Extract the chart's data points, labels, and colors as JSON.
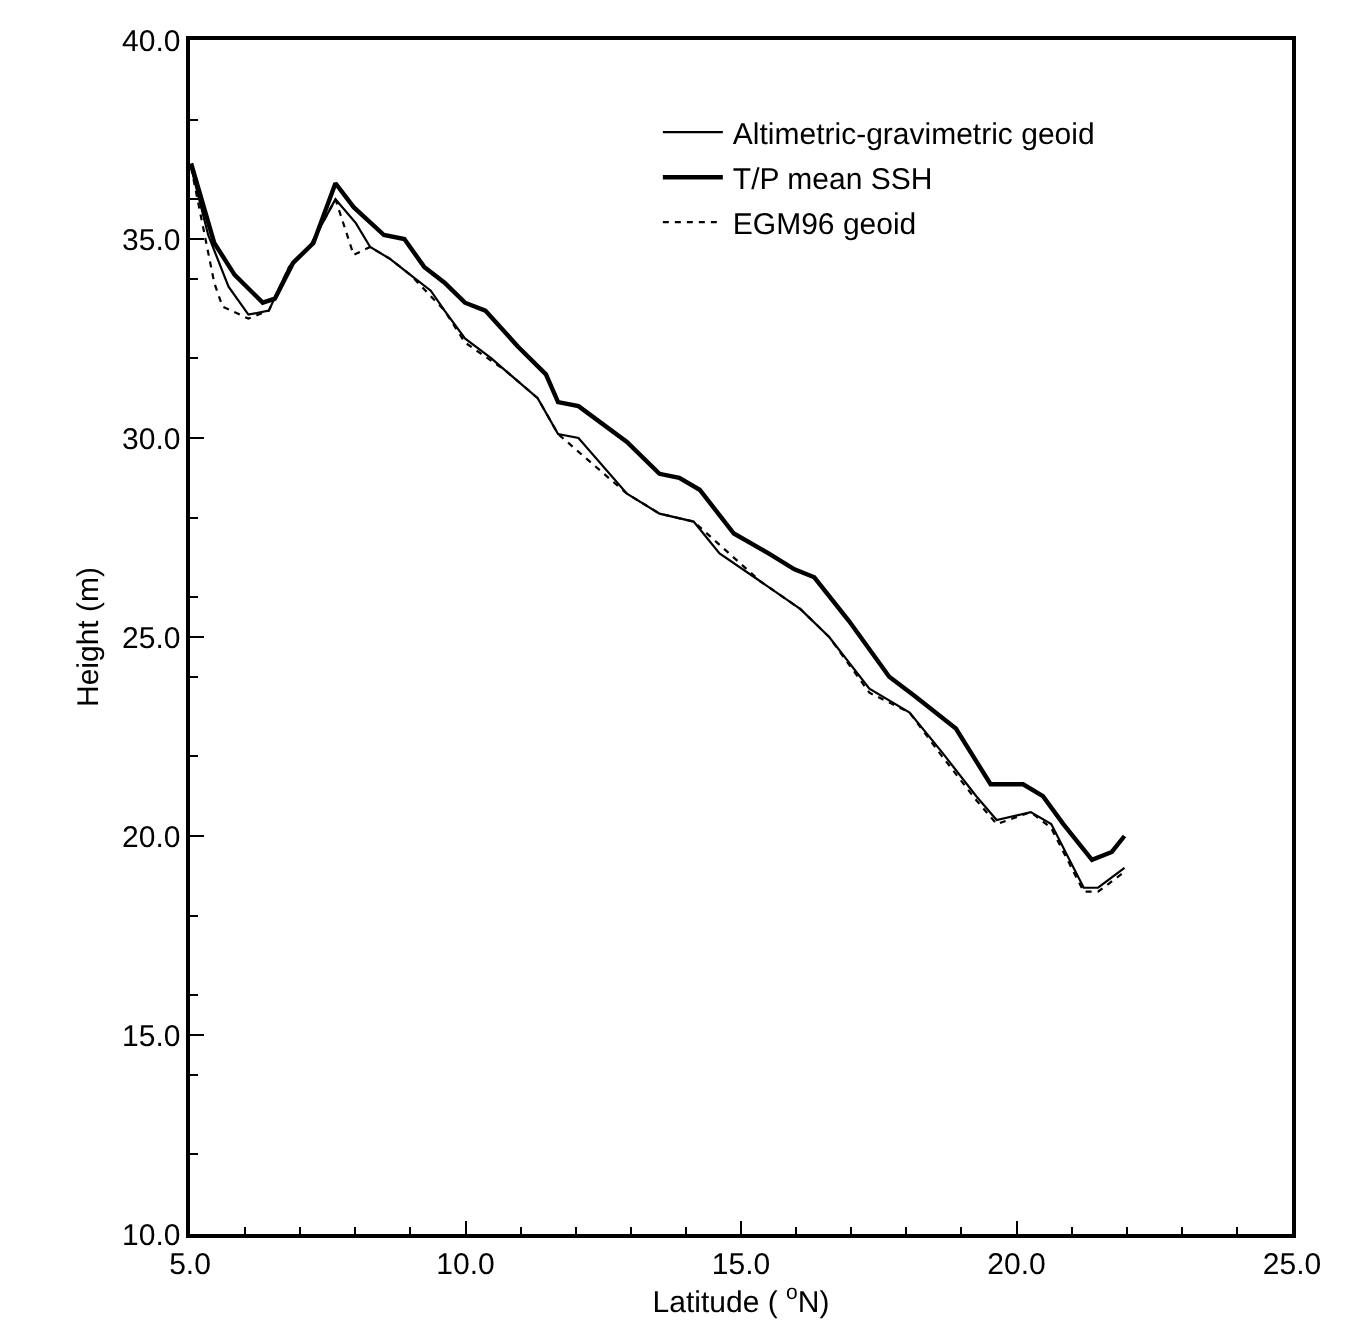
{
  "chart_data": {
    "type": "line",
    "xlabel": "Latitude ( $^{o}$N)",
    "ylabel": "Height (m)",
    "xlim": [
      5,
      25
    ],
    "xticks": [
      {
        "value": 5,
        "label": "5.0"
      },
      {
        "value": 10,
        "label": "10.0"
      },
      {
        "value": 15,
        "label": "15.0"
      },
      {
        "value": 20,
        "label": "20.0"
      },
      {
        "value": 25,
        "label": "25.0"
      }
    ],
    "ylim": [
      10,
      40
    ],
    "yticks": [
      {
        "value": 10,
        "label": "10.0"
      },
      {
        "value": 15,
        "label": "15.0"
      },
      {
        "value": 20,
        "label": "20.0"
      },
      {
        "value": 25,
        "label": "25.0"
      },
      {
        "value": 30,
        "label": "30.0"
      },
      {
        "value": 35,
        "label": "35.0"
      },
      {
        "value": 40,
        "label": "40.0"
      }
    ],
    "legend": "top right",
    "marker": "none",
    "series": [
      {
        "name": "Altimetric-gravimetric geoid",
        "color": "#000000",
        "line_style": "solid",
        "x": [
          5.02,
          5.33,
          5.7,
          6.06,
          6.43,
          6.8,
          7.17,
          7.64,
          8.01,
          8.27,
          8.63,
          9.0,
          9.37,
          9.62,
          9.99,
          10.47,
          10.72,
          11.31,
          11.68,
          12.05,
          12.93,
          13.52,
          14.14,
          14.61,
          15.35,
          16.08,
          16.6,
          17.33,
          18.06,
          18.65,
          19.27,
          19.64,
          20.26,
          20.63,
          21.22,
          21.48,
          21.96
        ],
        "values": [
          36.8,
          35.1,
          33.8,
          33.1,
          33.2,
          34.3,
          34.8,
          36.0,
          35.4,
          34.8,
          34.5,
          34.1,
          33.7,
          33.2,
          32.5,
          32.0,
          31.7,
          31.0,
          30.1,
          30.0,
          28.6,
          28.1,
          27.9,
          27.1,
          26.4,
          25.7,
          25.0,
          23.7,
          23.1,
          22.1,
          21.0,
          20.4,
          20.6,
          20.3,
          18.7,
          18.7,
          19.2
        ]
      },
      {
        "name": "T/P mean SSH",
        "color": "#000000",
        "line_style": "solid",
        "x": [
          5.02,
          5.44,
          5.81,
          6.32,
          6.54,
          6.87,
          7.24,
          7.64,
          7.97,
          8.52,
          8.89,
          9.25,
          9.62,
          9.99,
          10.36,
          10.95,
          11.46,
          11.68,
          12.05,
          12.93,
          13.52,
          13.88,
          14.25,
          14.87,
          15.5,
          15.97,
          16.33,
          16.96,
          17.69,
          18.17,
          18.9,
          19.53,
          20.12,
          20.48,
          20.85,
          21.37,
          21.73,
          21.96
        ],
        "values": [
          36.9,
          34.9,
          34.1,
          33.4,
          33.5,
          34.4,
          34.9,
          36.4,
          35.8,
          35.1,
          35.0,
          34.3,
          33.9,
          33.4,
          33.2,
          32.3,
          31.6,
          30.9,
          30.8,
          29.9,
          29.1,
          29.0,
          28.7,
          27.6,
          27.1,
          26.7,
          26.5,
          25.4,
          24.0,
          23.5,
          22.7,
          21.3,
          21.3,
          21.0,
          20.3,
          19.4,
          19.6,
          20.0
        ]
      },
      {
        "name": "EGM96 geoid",
        "color": "#000000",
        "line_style": "dotted",
        "x": [
          5.02,
          5.44,
          5.59,
          6.06,
          6.43,
          6.8,
          7.17,
          7.64,
          7.97,
          8.27,
          8.63,
          9.0,
          9.62,
          9.99,
          10.72,
          11.31,
          11.68,
          12.93,
          13.52,
          14.14,
          15.35,
          16.08,
          16.6,
          17.33,
          18.06,
          18.65,
          19.27,
          19.64,
          20.26,
          20.63,
          21.22,
          21.48,
          21.96
        ],
        "values": [
          36.8,
          33.9,
          33.3,
          33.0,
          33.2,
          34.3,
          34.8,
          36.0,
          34.6,
          34.8,
          34.5,
          34.1,
          33.2,
          32.4,
          31.7,
          31.0,
          30.1,
          28.6,
          28.1,
          27.9,
          26.4,
          25.7,
          25.0,
          23.6,
          23.1,
          22.0,
          20.9,
          20.3,
          20.6,
          20.2,
          18.6,
          18.6,
          19.1
        ]
      }
    ]
  }
}
